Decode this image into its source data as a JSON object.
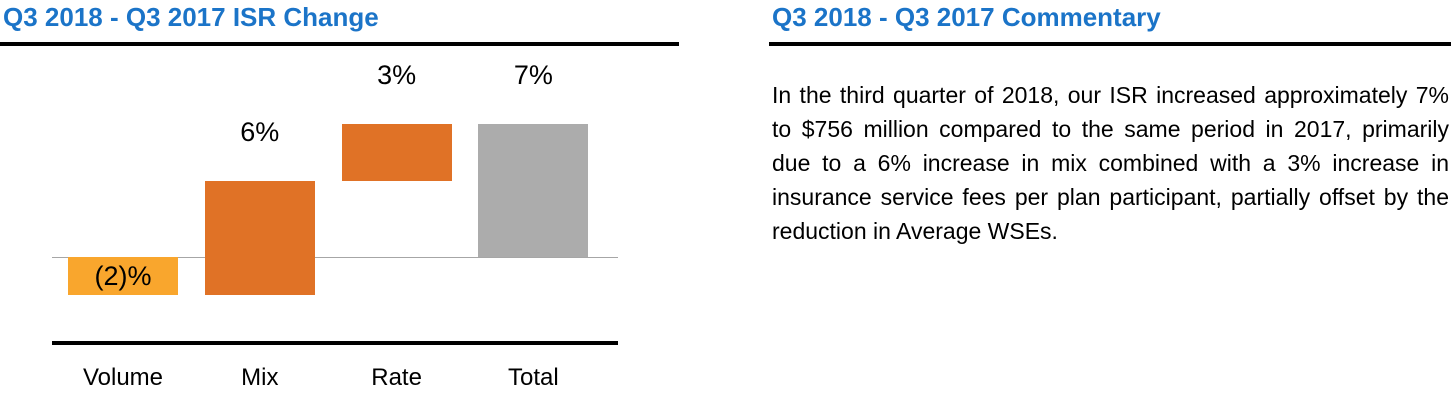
{
  "left_panel": {
    "title": "Q3 2018 - Q3 2017 ISR Change"
  },
  "right_panel": {
    "title": "Q3 2018 - Q3 2017 Commentary",
    "commentary": "In the third quarter of 2018, our ISR increased approximately 7% to $756 million compared to the same period in 2017, primarily due to a 6% increase in mix combined with a 3% increase in insurance service fees per plan participant, partially offset by the reduction in Average WSEs."
  },
  "chart_data": {
    "type": "bar",
    "subtype": "waterfall",
    "title": "Q3 2018 - Q3 2017 ISR Change",
    "categories": [
      "Volume",
      "Mix",
      "Rate",
      "Total"
    ],
    "values": [
      -2,
      6,
      3,
      7
    ],
    "value_labels": [
      "(2)%",
      "6%",
      "3%",
      "7%"
    ],
    "is_total": [
      false,
      false,
      false,
      true
    ],
    "baseline": 0,
    "unit": "%",
    "xlabel": "",
    "ylabel": "",
    "ylim": [
      -2,
      7
    ],
    "grid": false,
    "legend": false,
    "colors": {
      "negative": "#F9A62D",
      "positive": "#E07226",
      "total": "#ACACAC",
      "zero_line": "#A6A6A6",
      "axis_line": "#000000"
    }
  },
  "colors": {
    "title_blue": "#1B74C8",
    "rule_black": "#000000",
    "text_black": "#000000",
    "background": "#FFFFFF"
  }
}
